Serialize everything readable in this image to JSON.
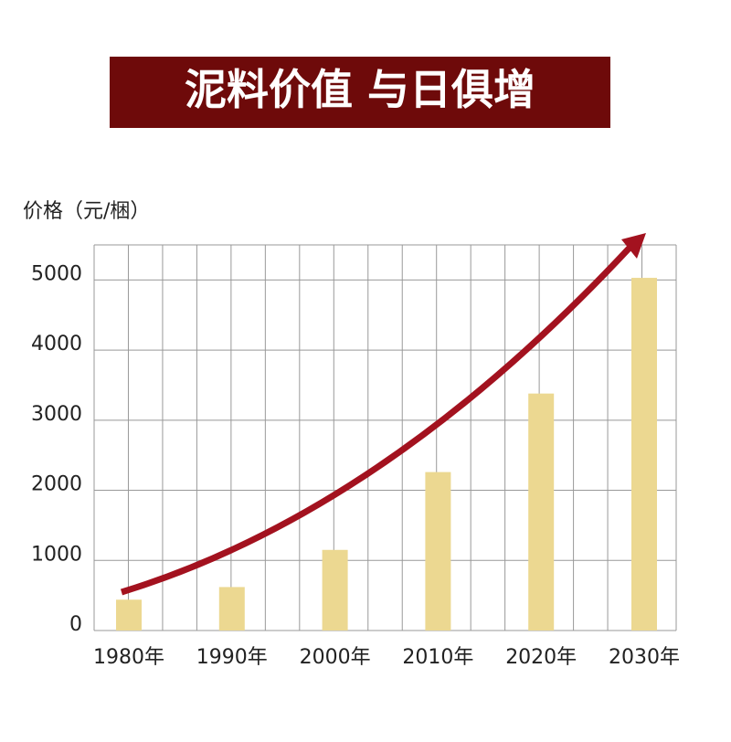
{
  "chart_data": {
    "type": "bar",
    "title": "泥料价值 与日俱增",
    "y_label": "价格（元/梱）",
    "categories": [
      "1980年",
      "1990年",
      "2000年",
      "2010年",
      "2020年",
      "2030年"
    ],
    "values": [
      440,
      620,
      1150,
      2260,
      3380,
      5030
    ],
    "color": "#ecd891",
    "ylim": [
      0,
      5500
    ],
    "yticks": [
      0,
      1000,
      2000,
      3000,
      4000,
      5000
    ],
    "grid": true
  }
}
